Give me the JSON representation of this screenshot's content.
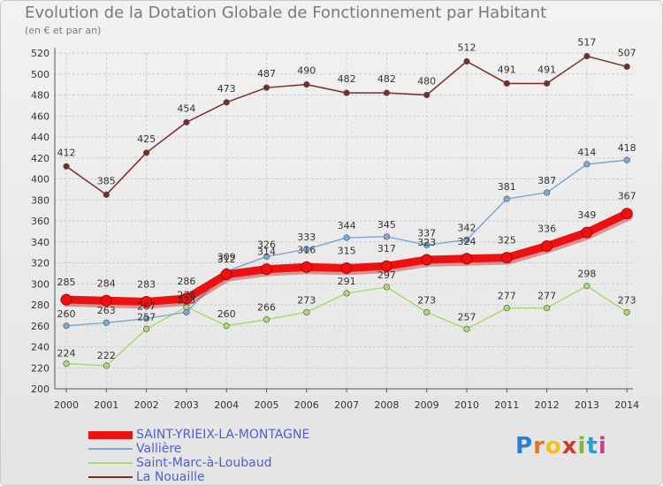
{
  "title": "Evolution de la Dotation Globale de Fonctionnement par Habitant",
  "subtitle": "(en € et par an)",
  "logo": {
    "text": "Proxiti",
    "letters": [
      "P",
      "r",
      "o",
      "x",
      "i",
      "t",
      "i"
    ]
  },
  "colors": {
    "grid": "#cfcfcf",
    "axis": "#555555",
    "tick_text": "#333333",
    "value_text": "#333333"
  },
  "chart_data": {
    "type": "line",
    "title": "Evolution de la Dotation Globale de Fonctionnement par Habitant",
    "ylabel": "(en € et par an)",
    "xlabel": "",
    "categories": [
      "2000",
      "2001",
      "2002",
      "2003",
      "2004",
      "2005",
      "2006",
      "2007",
      "2008",
      "2009",
      "2010",
      "2011",
      "2012",
      "2013",
      "2014"
    ],
    "ylim": [
      200,
      520
    ],
    "yticks": [
      200,
      220,
      240,
      260,
      280,
      300,
      320,
      340,
      360,
      380,
      400,
      420,
      440,
      460,
      480,
      500,
      520
    ],
    "grid": true,
    "legend_position": "bottom-left",
    "series": [
      {
        "name": "SAINT-YRIEIX-LA-MONTAGNE",
        "color": "#ee1111",
        "values": [
          285,
          284,
          283,
          286,
          309,
          314,
          316,
          315,
          317,
          323,
          324,
          325,
          336,
          349,
          367
        ]
      },
      {
        "name": "Vallière",
        "color": "#7ea8d8",
        "values": [
          260,
          263,
          267,
          273,
          312,
          326,
          333,
          344,
          345,
          337,
          342,
          381,
          387,
          414,
          418
        ]
      },
      {
        "name": "Saint-Marc-à-Loubaud",
        "color": "#a8dc6e",
        "values": [
          224,
          222,
          257,
          278,
          260,
          266,
          273,
          291,
          297,
          273,
          257,
          277,
          277,
          298,
          273
        ]
      },
      {
        "name": "La Nouaille",
        "color": "#7a2a2a",
        "values": [
          412,
          385,
          425,
          454,
          473,
          487,
          490,
          482,
          482,
          480,
          512,
          491,
          491,
          517,
          507
        ]
      }
    ]
  }
}
